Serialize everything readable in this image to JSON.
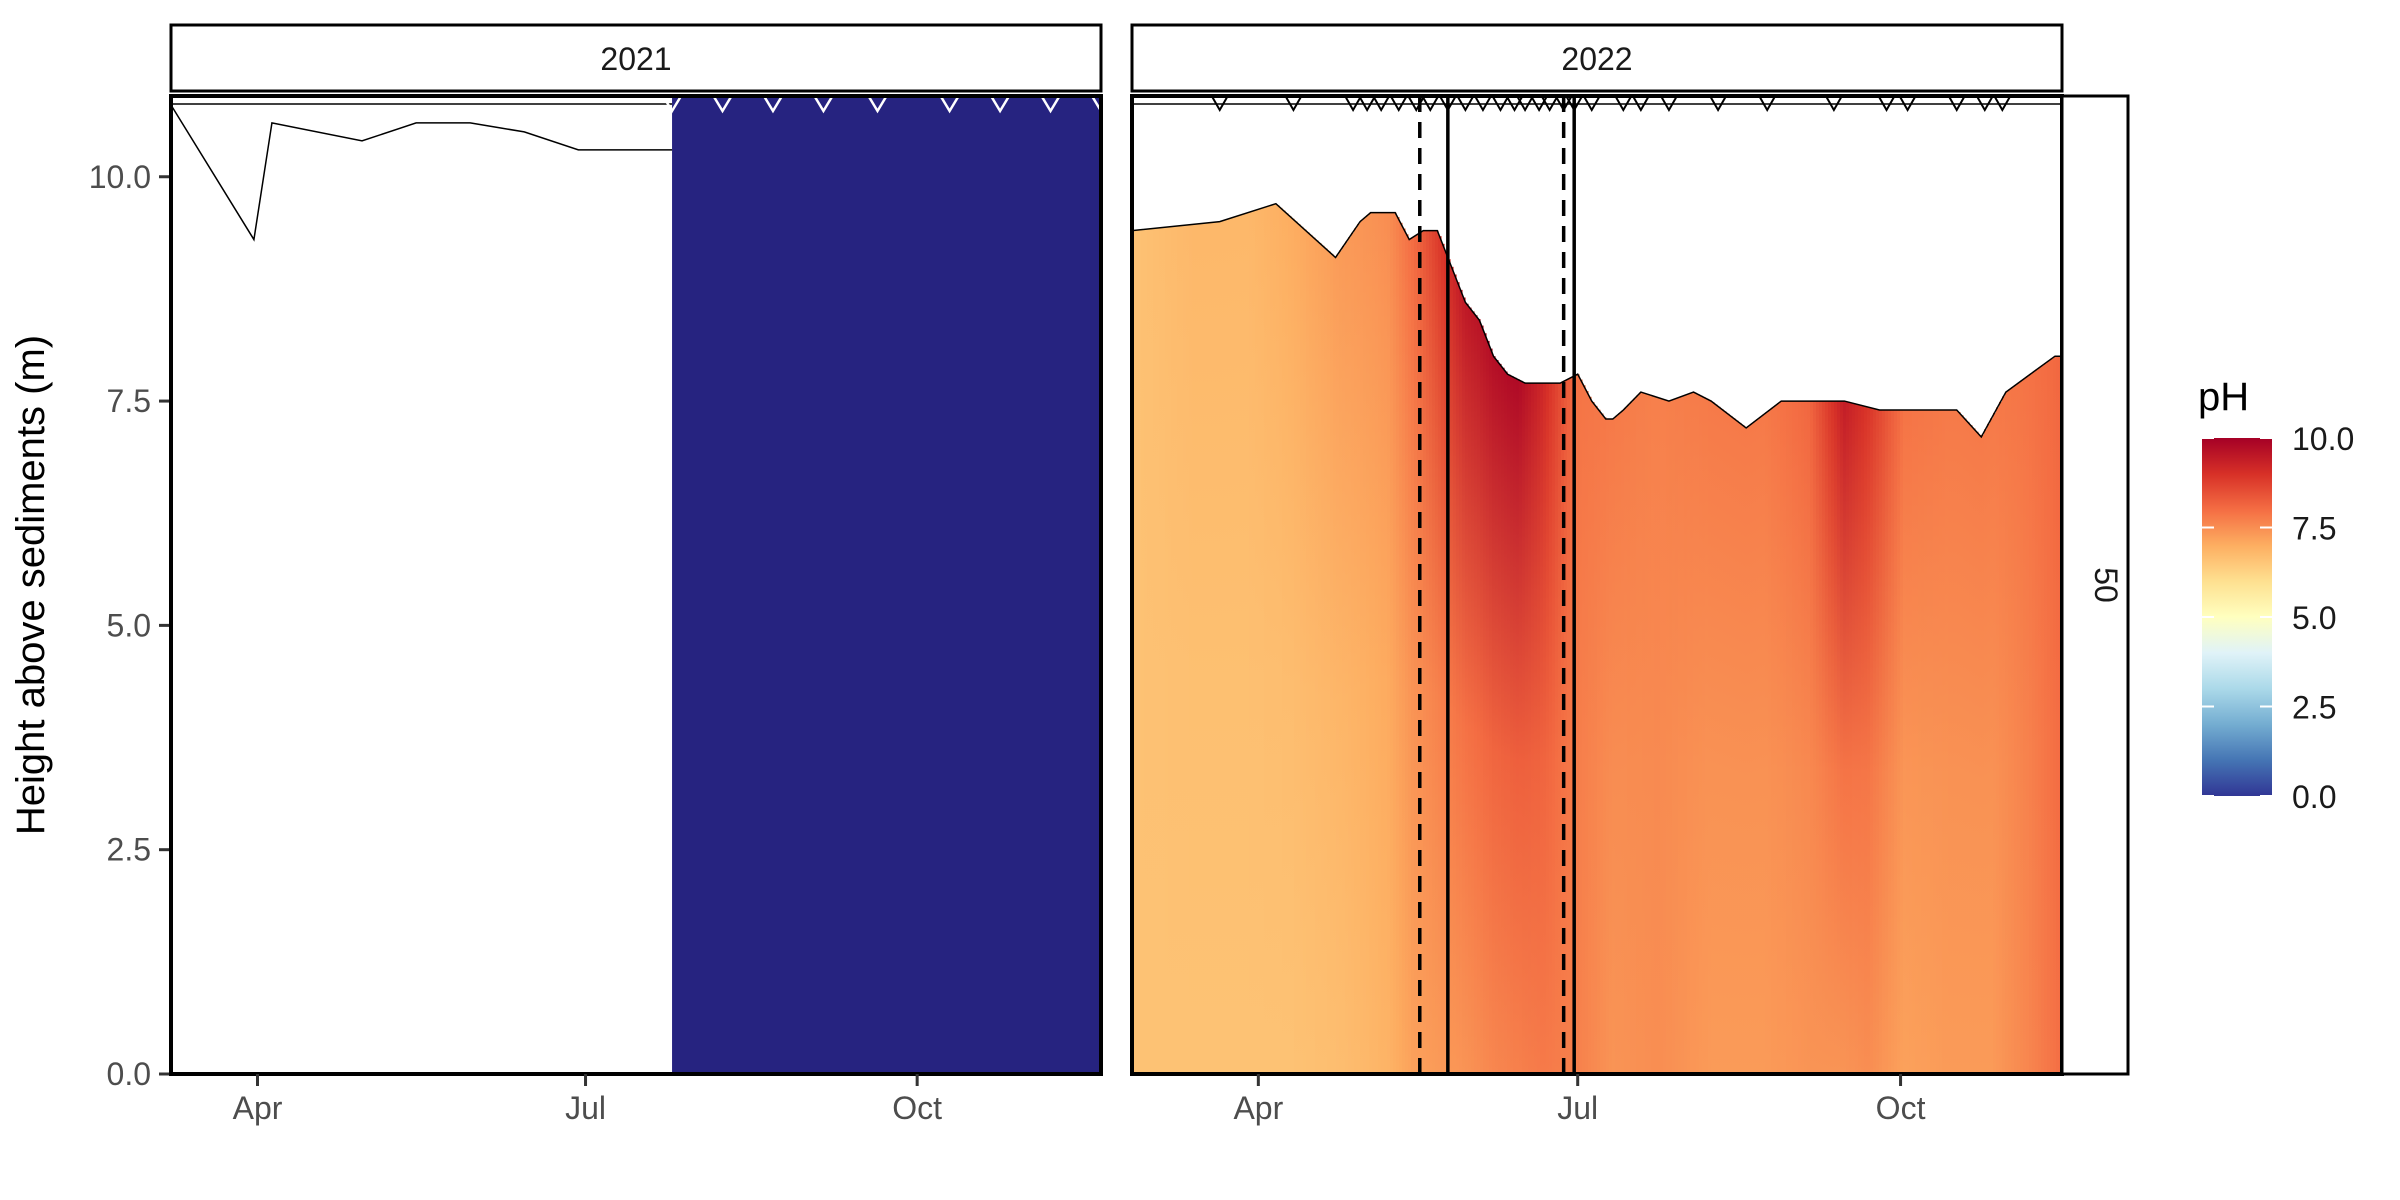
{
  "chart_data": {
    "type": "heatmap",
    "ylabel": "Height above sediments (m)",
    "ylim": [
      0,
      10.9
    ],
    "y_ticks": [
      "0.0",
      "2.5",
      "5.0",
      "7.5",
      "10.0"
    ],
    "facet_right_label": "50",
    "legend": {
      "title": "pH",
      "placement": "right",
      "range": [
        0,
        10
      ],
      "tick_labels": [
        "10.0",
        "7.5",
        "5.0",
        "2.5",
        "0.0"
      ],
      "colors": [
        "#313695",
        "#4575b4",
        "#74add1",
        "#abd9e9",
        "#e0f3f8",
        "#ffffbf",
        "#fee090",
        "#fdae61",
        "#f46d43",
        "#d73027",
        "#a50026"
      ]
    },
    "panels": [
      {
        "strip_label": "2021",
        "x_ticks": [
          "Apr",
          "Jul",
          "Oct"
        ],
        "x_tick_days": [
          91,
          182,
          274
        ],
        "x_range_days": [
          67,
          325
        ],
        "no_data_before_day": 206,
        "fill_color": "#262380",
        "depth_line_days": [
          67,
          90,
          95,
          120,
          135,
          150,
          165,
          180,
          206
        ],
        "depth_line_values": [
          10.8,
          9.3,
          10.6,
          10.4,
          10.6,
          10.6,
          10.5,
          10.3,
          10.3
        ],
        "sample_days": [
          206,
          220,
          234,
          248,
          263,
          283,
          297,
          311,
          325
        ],
        "vlines": []
      },
      {
        "strip_label": "2022",
        "x_ticks": [
          "Apr",
          "Jul",
          "Oct"
        ],
        "x_tick_days": [
          91,
          182,
          274
        ],
        "x_range_days": [
          55,
          320
        ],
        "surface_days": [
          55,
          80,
          96,
          113,
          120,
          123,
          130,
          134,
          138,
          142,
          146,
          150,
          154,
          158,
          162,
          167,
          172,
          177,
          182,
          186,
          190,
          192,
          195,
          200,
          208,
          215,
          220,
          230,
          240,
          248,
          258,
          268,
          275,
          283,
          290,
          297,
          304,
          311,
          318,
          320
        ],
        "surface_heights": [
          9.4,
          9.5,
          9.7,
          9.1,
          9.5,
          9.6,
          9.6,
          9.3,
          9.4,
          9.4,
          9.0,
          8.6,
          8.4,
          8.0,
          7.8,
          7.7,
          7.7,
          7.7,
          7.8,
          7.5,
          7.3,
          7.3,
          7.4,
          7.6,
          7.5,
          7.6,
          7.5,
          7.2,
          7.5,
          7.5,
          7.5,
          7.4,
          7.4,
          7.4,
          7.4,
          7.1,
          7.6,
          7.8,
          8.0,
          8.0
        ],
        "sample_days": [
          80,
          101,
          118,
          122,
          126,
          131,
          136,
          140,
          145,
          150,
          155,
          160,
          164,
          167,
          171,
          174,
          178,
          181,
          186,
          195,
          200,
          208,
          222,
          236,
          255,
          270,
          276,
          290,
          298,
          303
        ],
        "vlines": [
          {
            "day": 137,
            "style": "dashed"
          },
          {
            "day": 145,
            "style": "solid"
          },
          {
            "day": 178,
            "style": "dashed"
          },
          {
            "day": 181,
            "style": "solid"
          }
        ],
        "ph_profile": {
          "days": [
            55,
            72,
            88,
            100,
            115,
            128,
            135,
            142,
            150,
            158,
            165,
            172,
            182,
            192,
            205,
            220,
            235,
            248,
            258,
            265,
            275,
            288,
            300,
            310,
            320
          ],
          "bottom": [
            6.6,
            6.6,
            6.6,
            6.6,
            6.7,
            6.9,
            7.2,
            7.3,
            7.4,
            7.6,
            7.7,
            7.8,
            7.7,
            7.4,
            7.5,
            7.3,
            7.3,
            7.4,
            7.4,
            7.5,
            7.2,
            7.3,
            7.3,
            7.6,
            8.0
          ],
          "top": [
            6.6,
            6.8,
            6.8,
            7.0,
            7.3,
            7.5,
            8.0,
            8.8,
            9.5,
            9.7,
            9.8,
            9.2,
            7.9,
            7.8,
            7.7,
            7.8,
            7.8,
            8.1,
            9.4,
            8.9,
            7.9,
            7.8,
            7.8,
            7.9,
            8.1
          ]
        }
      }
    ]
  }
}
